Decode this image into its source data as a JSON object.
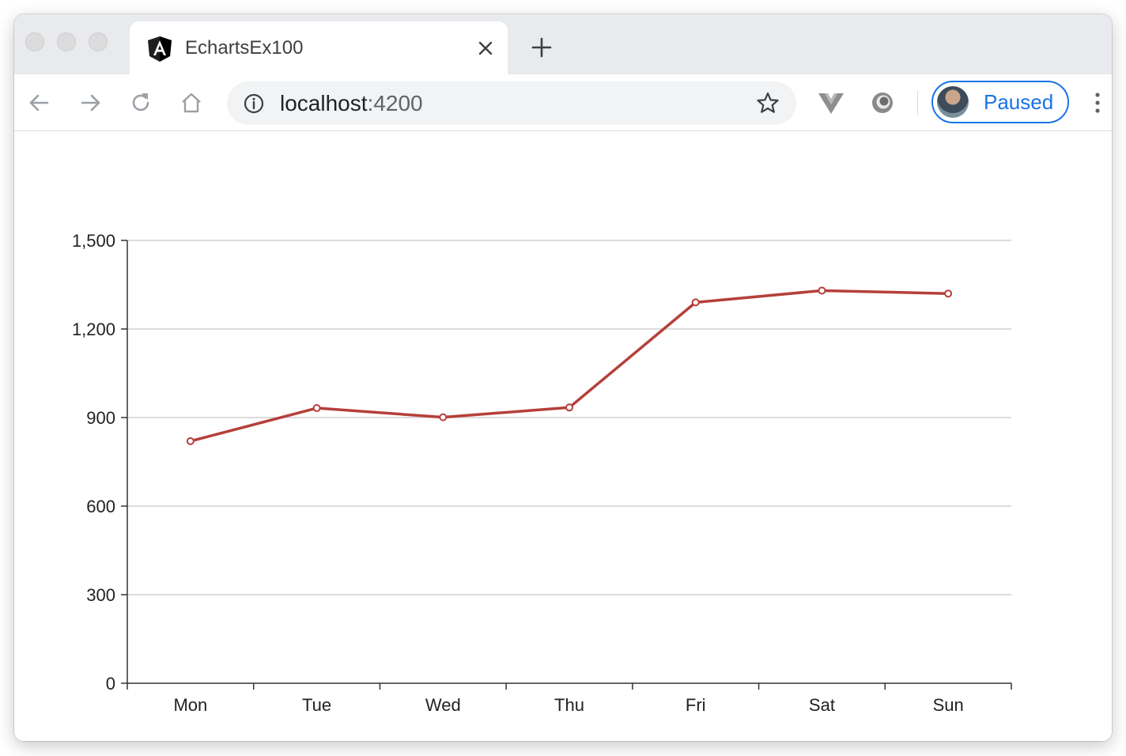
{
  "browser": {
    "tab": {
      "title": "EchartsEx100",
      "icon": "angular-icon"
    },
    "address_bar": {
      "host": "localhost",
      "port": ":4200"
    },
    "profile": {
      "label": "Paused"
    },
    "colors": {
      "accent": "#1a73e8",
      "tabstrip": "#e8eaed"
    }
  },
  "chart_data": {
    "type": "line",
    "categories": [
      "Mon",
      "Tue",
      "Wed",
      "Thu",
      "Fri",
      "Sat",
      "Sun"
    ],
    "series": [
      {
        "values": [
          820,
          932,
          901,
          934,
          1290,
          1330,
          1320
        ],
        "color": "#b5403a"
      }
    ],
    "ylim": [
      0,
      1500
    ],
    "yticks": [
      "0",
      "300",
      "600",
      "900",
      "1,200",
      "1,500"
    ],
    "grid": true,
    "legend": "none"
  }
}
